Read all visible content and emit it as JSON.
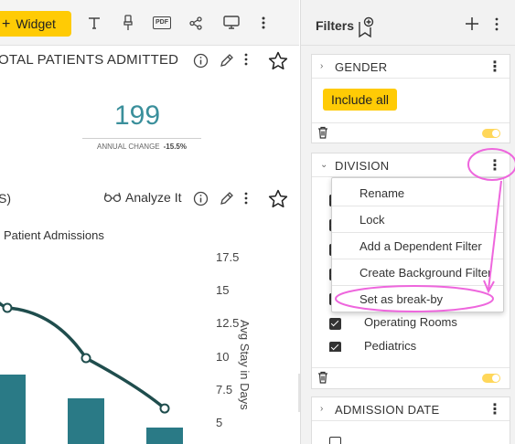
{
  "toolbar": {
    "add_widget": "Widget"
  },
  "widget1": {
    "title": "OTAL PATIENTS ADMITTED",
    "value": "199",
    "change_label": "ANNUAL CHANGE",
    "change_value": "-15.5%"
  },
  "widget2": {
    "title": "S)",
    "analyze": "Analyze It",
    "chart_title": "Patient Admissions"
  },
  "chart_data": {
    "type": "bar",
    "title": "Patient Admissions",
    "y2label": "Avg Stay in Days",
    "y2_ticks": [
      "17.5",
      "15",
      "12.5",
      "10",
      "7.5",
      "5"
    ],
    "y2lim": [
      5,
      17.5
    ],
    "series": [
      {
        "name": "",
        "type": "line",
        "values": [
          14.8,
          13.7,
          9.9,
          6.1
        ]
      }
    ],
    "colors": {
      "bar": "#2a7a86",
      "line": "#1f4d4d"
    }
  },
  "filters": {
    "title": "Filters",
    "gender": {
      "title": "GENDER",
      "include_all": "Include all"
    },
    "division": {
      "title": "DIVISION",
      "items": [
        {
          "label": "Operating Rooms"
        },
        {
          "label": "Pediatrics"
        }
      ]
    },
    "admission": {
      "title": "ADMISSION DATE"
    }
  },
  "context_menu": {
    "items": [
      "Rename",
      "Lock",
      "Add a Dependent Filter",
      "Create Background Filter",
      "Set as break-by"
    ]
  },
  "colors": {
    "accent": "#ffcb05",
    "kpi": "#3a8f9b",
    "annotation": "#ee66dd"
  }
}
